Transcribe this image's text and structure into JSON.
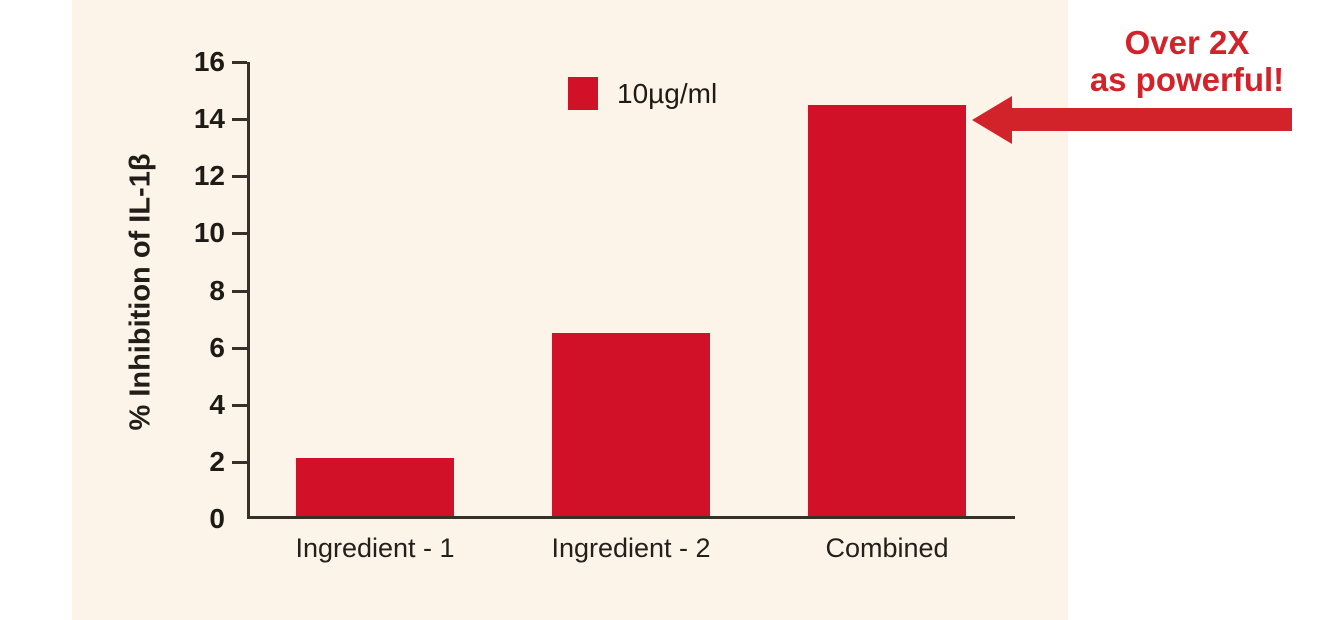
{
  "colors": {
    "bar_red": "#D01127",
    "accent_red": "#D2232A",
    "panel_bg": "#FCF4E8",
    "axis": "#373028"
  },
  "chart_data": {
    "type": "bar",
    "categories": [
      "Ingredient - 1",
      "Ingredient - 2",
      "Combined"
    ],
    "values": [
      2.15,
      6.5,
      14.5
    ],
    "title": "",
    "xlabel": "",
    "ylabel": "% Inhibition of IL-1β",
    "ylim": [
      0,
      16
    ],
    "yticks": [
      0,
      2,
      4,
      6,
      8,
      10,
      12,
      14,
      16
    ],
    "grid": false,
    "legend": {
      "label": "10µg/ml",
      "position": "top-center",
      "swatch_color": "#D01127"
    }
  },
  "annotation": {
    "line1": "Over 2X",
    "line2": "as powerful!",
    "color": "#D2232A"
  }
}
